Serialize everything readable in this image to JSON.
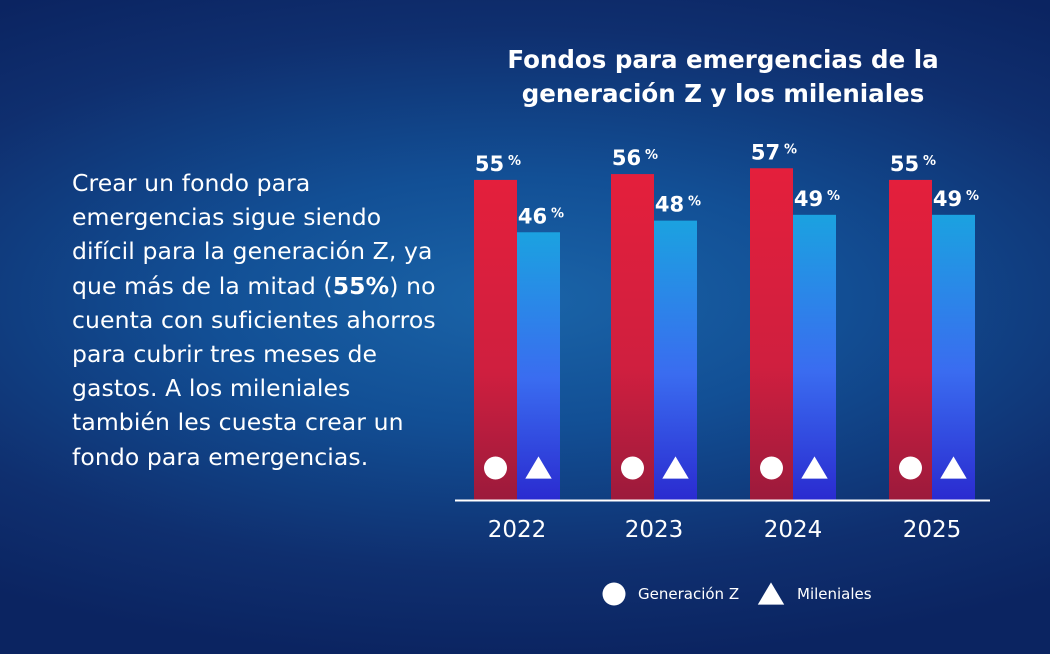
{
  "paragraph": {
    "before": "Crear un fondo para emergencias sigue siendo difícil para la generación Z, ya que más de la mitad (",
    "bold": "55%",
    "after": ") no cuenta con suficientes ahorros para cubrir tres meses de gastos. A los mileniales también les cuesta crear un fondo para emergencias."
  },
  "chart_data": {
    "type": "bar",
    "title": [
      "Fondos para emergencias de la",
      "generación Z y los mileniales"
    ],
    "categories": [
      "2022",
      "2023",
      "2024",
      "2025"
    ],
    "unit_suffix": "%",
    "series": [
      {
        "name": "Generación Z",
        "values": [
          55,
          56,
          57,
          55
        ],
        "marker": "circle",
        "color_top": "#e01f3d",
        "color_bottom": "#a0183a"
      },
      {
        "name": "Mileniales",
        "values": [
          46,
          48,
          49,
          49
        ],
        "marker": "triangle",
        "color_top": "#1ca0e0",
        "color_bottom": "#2a2fd0"
      }
    ],
    "ylim": [
      0,
      60
    ],
    "grid": false,
    "legend_position": "bottom",
    "axis_color": "#ffffff"
  }
}
